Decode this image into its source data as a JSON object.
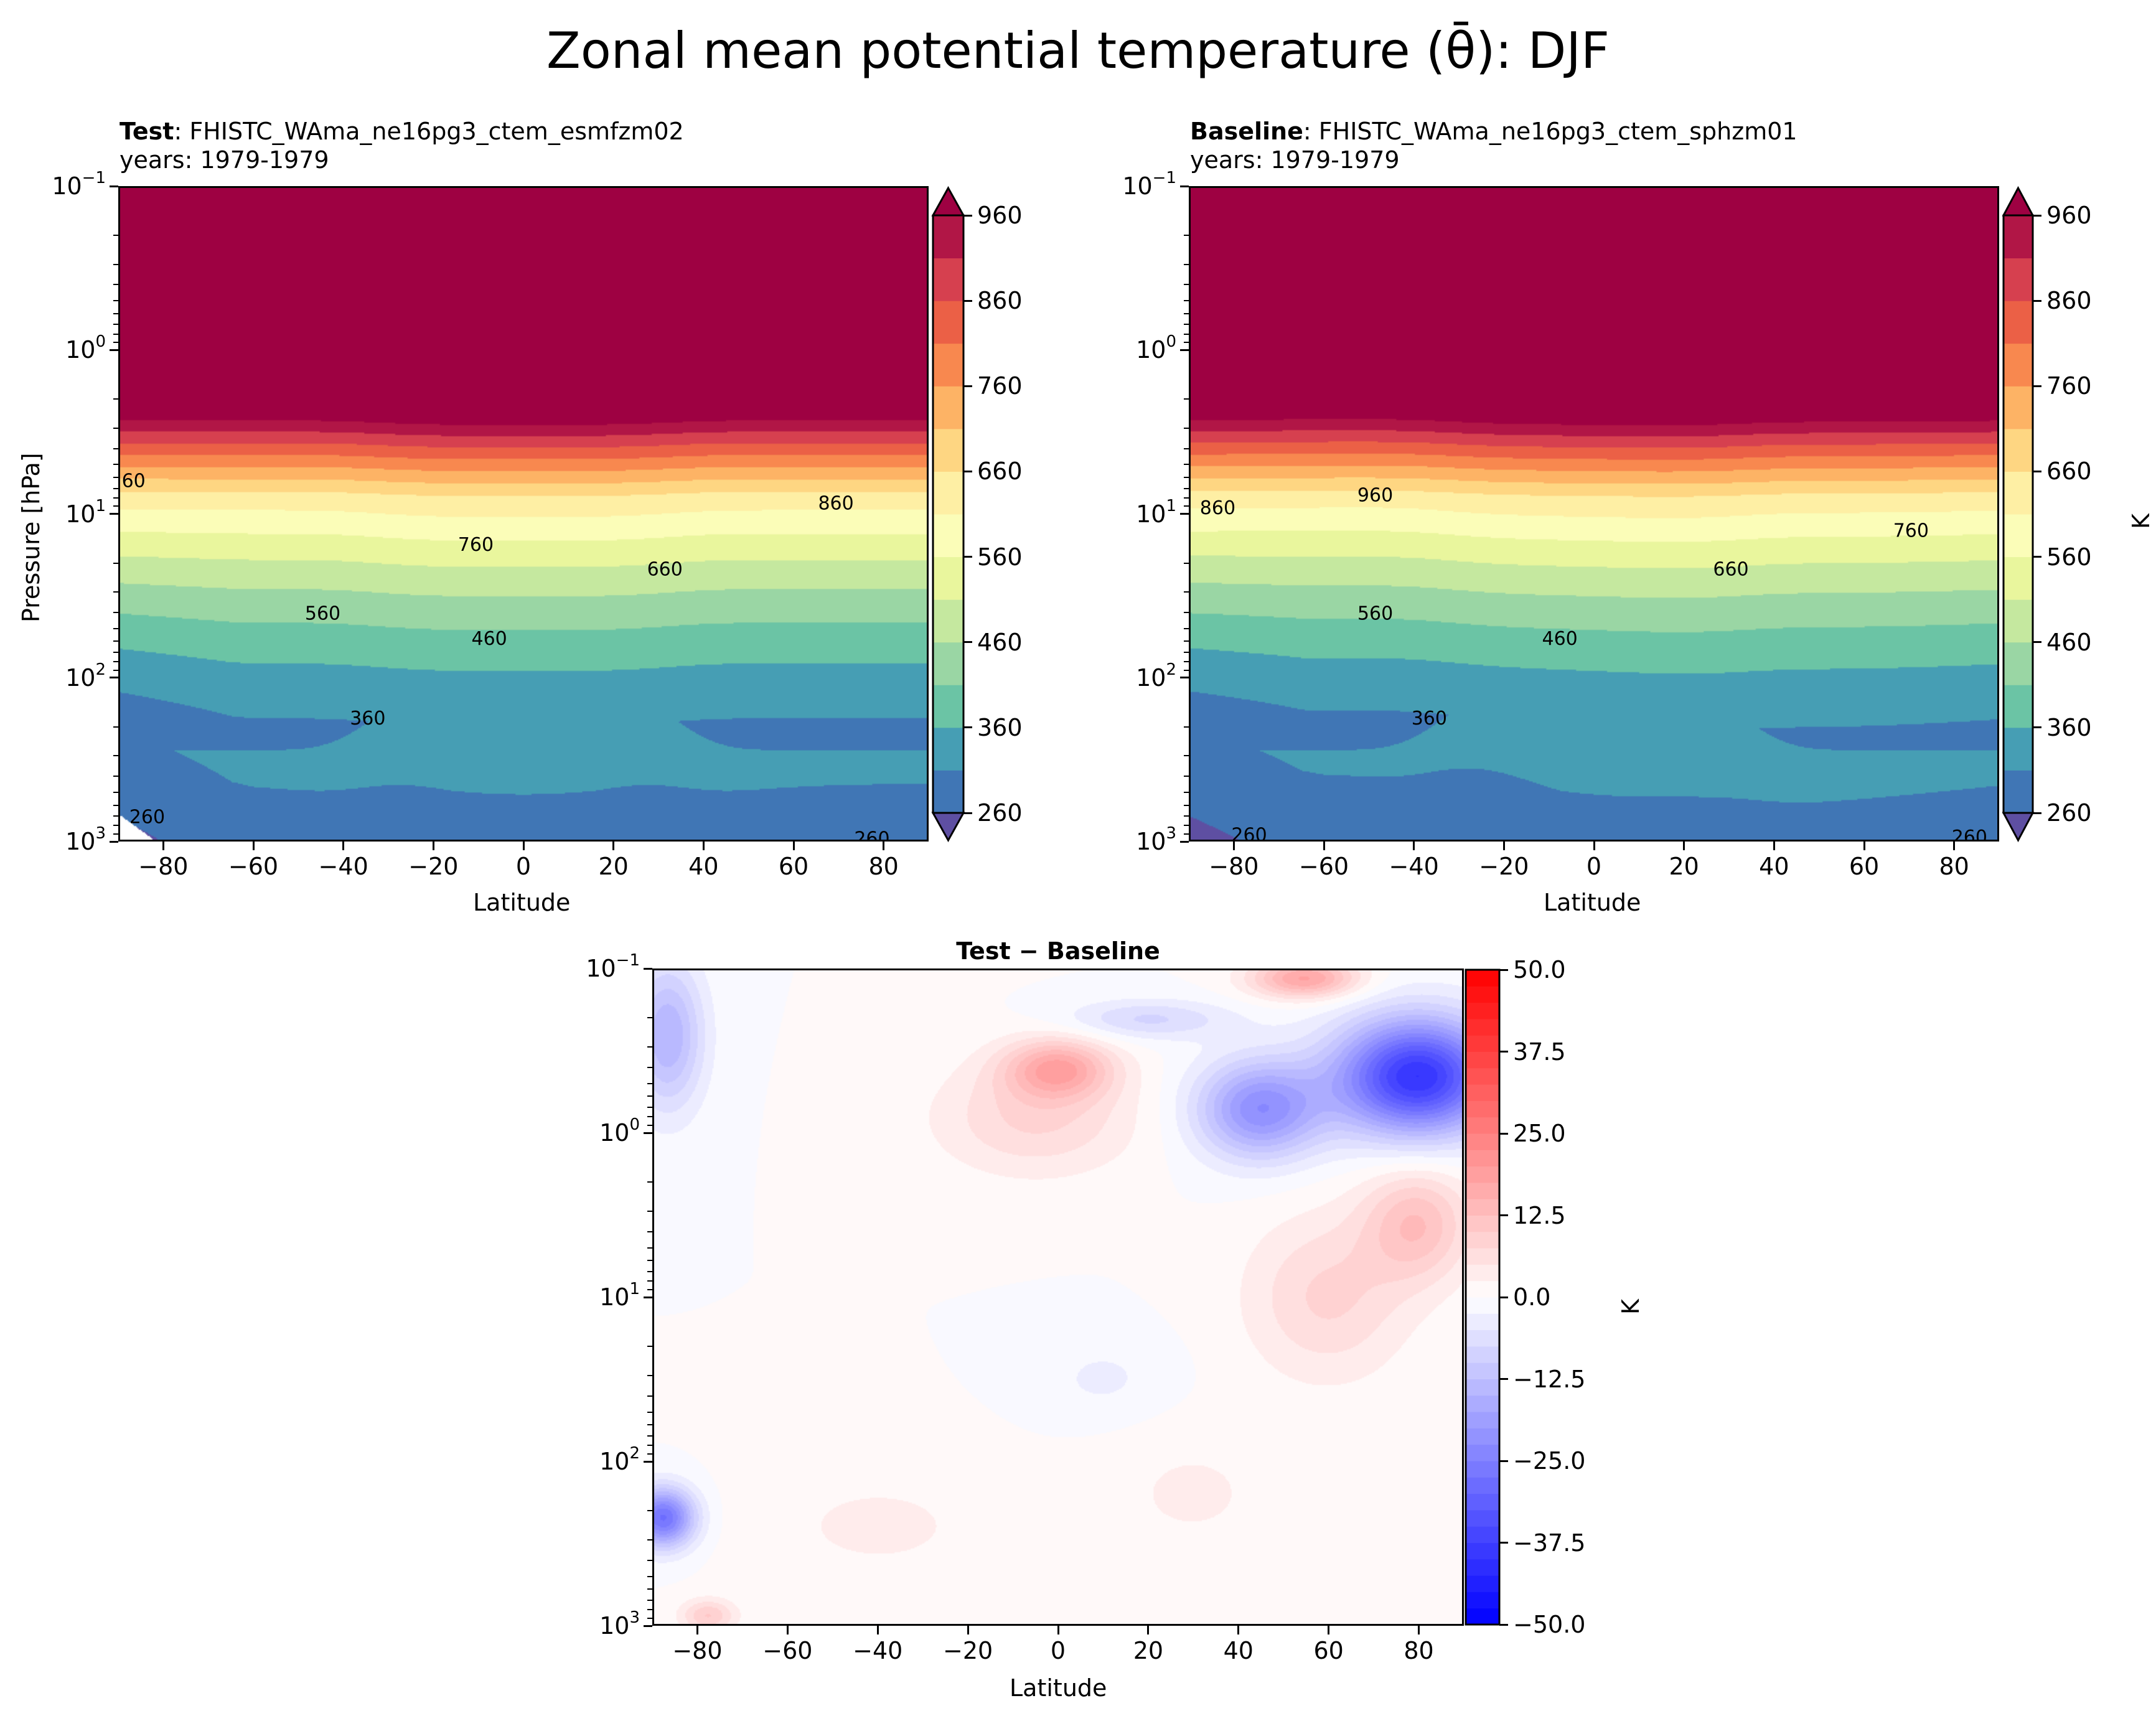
{
  "figure": {
    "suptitle": "Zonal mean potential temperature (θ̄): DJF"
  },
  "chart_data": [
    {
      "id": "test",
      "type": "heatmap",
      "subtype": "filled-contour",
      "title_bold": "Test",
      "title_rest": ": FHISTC_WAma_ne16pg3_ctem_esmfzm02",
      "subtitle": "years: 1979-1979",
      "xlabel": "Latitude",
      "ylabel": "Pressure [hPa]",
      "xlim": [
        -90,
        90
      ],
      "ylim": [
        1000,
        0.1
      ],
      "yscale": "log",
      "xticks": [
        -80,
        -60,
        -40,
        -20,
        0,
        20,
        40,
        60,
        80
      ],
      "xtick_labels": [
        "−80",
        "−60",
        "−40",
        "−20",
        "0",
        "20",
        "40",
        "60",
        "80"
      ],
      "yticks": [
        {
          "base": "10",
          "exp": "−1",
          "value": 0.1
        },
        {
          "base": "10",
          "exp": "0",
          "value": 1
        },
        {
          "base": "10",
          "exp": "1",
          "value": 10
        },
        {
          "base": "10",
          "exp": "2",
          "value": 100
        },
        {
          "base": "10",
          "exp": "3",
          "value": 1000
        }
      ],
      "contour_levels": {
        "min": 260,
        "max": 960,
        "step": 50
      },
      "contour_labels": [
        {
          "text": "60",
          "lat": -87,
          "p": 6.2
        },
        {
          "text": "860",
          "lat": 69,
          "p": 8.5
        },
        {
          "text": "760",
          "lat": -11,
          "p": 15.2
        },
        {
          "text": "660",
          "lat": 31,
          "p": 21.5
        },
        {
          "text": "560",
          "lat": -45,
          "p": 40
        },
        {
          "text": "460",
          "lat": -8,
          "p": 57
        },
        {
          "text": "360",
          "lat": -35,
          "p": 175
        },
        {
          "text": "260",
          "lat": -84,
          "p": 700
        },
        {
          "text": "260",
          "lat": 77,
          "p": 950
        }
      ],
      "colorbar": {
        "ticks": [
          260,
          360,
          460,
          560,
          660,
          760,
          860,
          960
        ],
        "extend": "both",
        "label": ""
      },
      "colormap": "Spectral_r",
      "field_description": "theta ≈ 960+ K above ~7 hPa, decreasing to ~260–310 K near surface; tropopause bulge near equator"
    },
    {
      "id": "baseline",
      "type": "heatmap",
      "subtype": "filled-contour",
      "title_bold": "Baseline",
      "title_rest": ": FHISTC_WAma_ne16pg3_ctem_sphzm01",
      "subtitle": "years: 1979-1979",
      "xlabel": "Latitude",
      "ylabel": "",
      "xlim": [
        -90,
        90
      ],
      "ylim": [
        1000,
        0.1
      ],
      "yscale": "log",
      "xticks": [
        -80,
        -60,
        -40,
        -20,
        0,
        20,
        40,
        60,
        80
      ],
      "xtick_labels": [
        "−80",
        "−60",
        "−40",
        "−20",
        "0",
        "20",
        "40",
        "60",
        "80"
      ],
      "yticks": [
        {
          "base": "10",
          "exp": "−1",
          "value": 0.1
        },
        {
          "base": "10",
          "exp": "0",
          "value": 1
        },
        {
          "base": "10",
          "exp": "1",
          "value": 10
        },
        {
          "base": "10",
          "exp": "2",
          "value": 100
        },
        {
          "base": "10",
          "exp": "3",
          "value": 1000
        }
      ],
      "contour_levels": {
        "min": 260,
        "max": 960,
        "step": 50
      },
      "contour_labels": [
        {
          "text": "960",
          "lat": -49,
          "p": 7.6
        },
        {
          "text": "860",
          "lat": -84,
          "p": 9.1
        },
        {
          "text": "760",
          "lat": 70,
          "p": 12.5
        },
        {
          "text": "660",
          "lat": 30,
          "p": 21.5
        },
        {
          "text": "560",
          "lat": -49,
          "p": 40
        },
        {
          "text": "460",
          "lat": -8,
          "p": 57
        },
        {
          "text": "360",
          "lat": -37,
          "p": 175
        },
        {
          "text": "260",
          "lat": -77,
          "p": 900
        },
        {
          "text": "260",
          "lat": 83,
          "p": 930
        }
      ],
      "colorbar": {
        "ticks": [
          260,
          360,
          460,
          560,
          660,
          760,
          860,
          960
        ],
        "extend": "both",
        "label": "K"
      },
      "colormap": "Spectral_r"
    },
    {
      "id": "diff",
      "type": "heatmap",
      "subtype": "filled-contour",
      "title_bold": "Test − Baseline",
      "xlabel": "Latitude",
      "ylabel": "",
      "xlim": [
        -90,
        90
      ],
      "ylim": [
        1000,
        0.1
      ],
      "yscale": "log",
      "xticks": [
        -80,
        -60,
        -40,
        -20,
        0,
        20,
        40,
        60,
        80
      ],
      "xtick_labels": [
        "−80",
        "−60",
        "−40",
        "−20",
        "0",
        "20",
        "40",
        "60",
        "80"
      ],
      "yticks": [
        {
          "base": "10",
          "exp": "−1",
          "value": 0.1
        },
        {
          "base": "10",
          "exp": "0",
          "value": 1
        },
        {
          "base": "10",
          "exp": "1",
          "value": 10
        },
        {
          "base": "10",
          "exp": "2",
          "value": 100
        },
        {
          "base": "10",
          "exp": "3",
          "value": 1000
        }
      ],
      "contour_levels": {
        "min": -50,
        "max": 50,
        "step": 2.5
      },
      "colorbar": {
        "ticks": [
          50.0,
          37.5,
          25.0,
          12.5,
          0.0,
          -12.5,
          -25.0,
          -37.5,
          -50.0
        ],
        "tick_labels": [
          "50.0",
          "37.5",
          "25.0",
          "12.5",
          "0.0",
          "−12.5",
          "−25.0",
          "−37.5",
          "−50.0"
        ],
        "extend": "neither",
        "label": "K"
      },
      "colormap": "bwr",
      "features": [
        {
          "lat": 80,
          "p": 0.45,
          "value": -38,
          "desc": "strong negative anomaly, NH polar upper stratosphere/mesosphere"
        },
        {
          "lat": 45,
          "p": 0.7,
          "value": -22,
          "desc": "negative lobe extending equatorward"
        },
        {
          "lat": 0,
          "p": 0.4,
          "value": 16,
          "desc": "positive anomaly near equator"
        },
        {
          "lat": 55,
          "p": 0.11,
          "value": 18,
          "desc": "positive anomaly at model top"
        },
        {
          "lat": 80,
          "p": 3.5,
          "value": 12,
          "desc": "positive anomaly NH polar mid-stratosphere"
        },
        {
          "lat": -87,
          "p": 0.25,
          "value": -15,
          "desc": "weak negative near SH pole upper levels"
        },
        {
          "lat": -88,
          "p": 220,
          "value": -28,
          "desc": "negative anomaly SH polar lower stratosphere"
        },
        {
          "lat": -78,
          "p": 900,
          "value": 10,
          "desc": "positive near surface SH pole"
        }
      ]
    }
  ]
}
